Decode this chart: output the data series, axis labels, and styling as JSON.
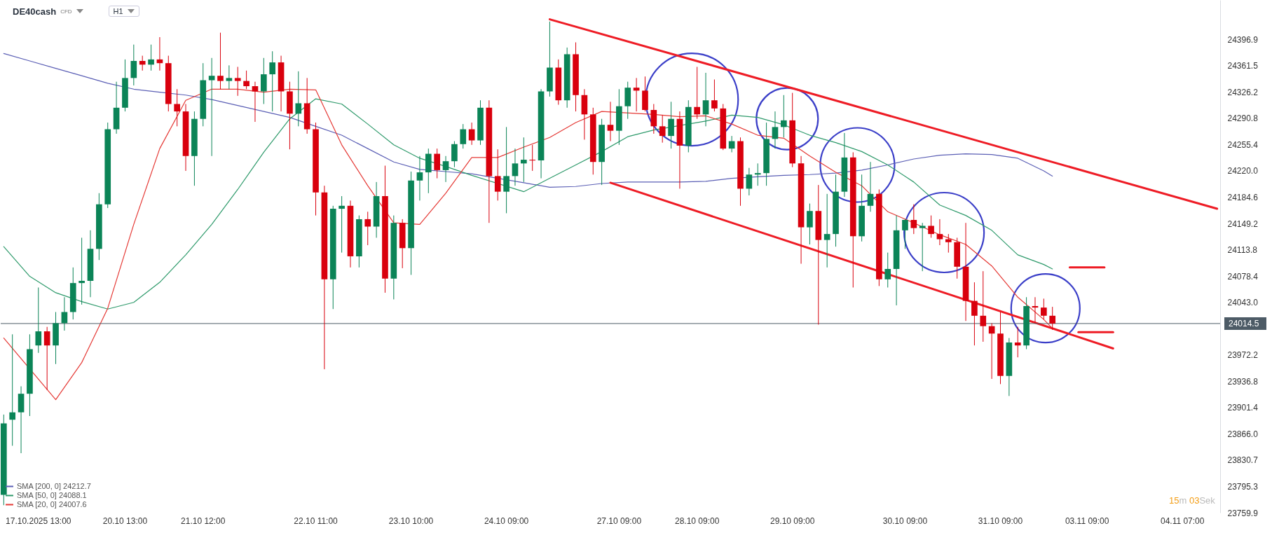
{
  "chart_data": {
    "type": "candlestick",
    "title": "DE40cash",
    "annotations": [
      "CFD",
      "H1",
      "15m 03Sek"
    ],
    "categories": [
      null,
      null,
      null,
      null,
      "17.10.2025 13:00",
      null,
      null,
      null,
      null,
      null,
      null,
      null,
      null,
      null,
      "20.10 13:00",
      null,
      null,
      null,
      null,
      null,
      null,
      null,
      null,
      "21.10 12:00",
      null,
      null,
      null,
      null,
      null,
      null,
      null,
      null,
      null,
      null,
      null,
      null,
      "22.10 11:00",
      null,
      null,
      null,
      null,
      null,
      null,
      null,
      null,
      null,
      null,
      "23.10 10:00",
      null,
      null,
      null,
      null,
      null,
      null,
      null,
      null,
      null,
      null,
      "24.10 09:00",
      null,
      null,
      null,
      null,
      null,
      null,
      null,
      null,
      null,
      null,
      null,
      null,
      "27.10 09:00",
      null,
      null,
      null,
      null,
      null,
      null,
      null,
      null,
      "28.10 09:00",
      null,
      null,
      null,
      null,
      null,
      null,
      null,
      null,
      null,
      null,
      "29.10 09:00",
      null,
      null,
      null,
      null,
      null,
      null,
      null,
      null,
      null,
      null,
      null,
      null,
      "30.10 09:00",
      null,
      null,
      null,
      null,
      null,
      null,
      null,
      null,
      null,
      null,
      "31.10 09:00",
      null,
      null,
      null,
      null,
      null,
      null,
      null,
      null,
      null,
      "03.11 09:00",
      null,
      null,
      null,
      null,
      null,
      null,
      null,
      null,
      null,
      null,
      "04.11 07:00",
      null,
      null,
      null,
      null
    ],
    "ohlc": [
      [
        23784,
        23892,
        23770,
        23880
      ],
      [
        23885,
        24000,
        23850,
        23895
      ],
      [
        23895,
        23930,
        23840,
        23920
      ],
      [
        23920,
        24000,
        23890,
        23980
      ],
      [
        23985,
        24063,
        23975,
        24004
      ],
      [
        24004,
        24010,
        23925,
        23985
      ],
      [
        23985,
        24030,
        23960,
        24015
      ],
      [
        24015,
        24050,
        24005,
        24030
      ],
      [
        24030,
        24090,
        24020,
        24069
      ],
      [
        24069,
        24130,
        24040,
        24072
      ],
      [
        24072,
        24140,
        24050,
        24115
      ],
      [
        24115,
        24190,
        24100,
        24175
      ],
      [
        24175,
        24285,
        24170,
        24276
      ],
      [
        24276,
        24340,
        24270,
        24305
      ],
      [
        24305,
        24370,
        24300,
        24345
      ],
      [
        24345,
        24390,
        24335,
        24368
      ],
      [
        24368,
        24375,
        24355,
        24363
      ],
      [
        24363,
        24390,
        24355,
        24370
      ],
      [
        24370,
        24400,
        24355,
        24365
      ],
      [
        24365,
        24375,
        24300,
        24310
      ],
      [
        24310,
        24330,
        24280,
        24300
      ],
      [
        24300,
        24310,
        24220,
        24240
      ],
      [
        24240,
        24300,
        24200,
        24290
      ],
      [
        24290,
        24365,
        24280,
        24342
      ],
      [
        24342,
        24372,
        24240,
        24348
      ],
      [
        24348,
        24406,
        24330,
        24341
      ],
      [
        24341,
        24362,
        24330,
        24345
      ],
      [
        24345,
        24360,
        24321,
        24341
      ],
      [
        24341,
        24355,
        24330,
        24334
      ],
      [
        24334,
        24340,
        24286,
        24327
      ],
      [
        24327,
        24372,
        24310,
        24350
      ],
      [
        24350,
        24381,
        24300,
        24366
      ],
      [
        24366,
        24375,
        24300,
        24327
      ],
      [
        24327,
        24340,
        24249,
        24297
      ],
      [
        24297,
        24354,
        24280,
        24311
      ],
      [
        24311,
        24345,
        24270,
        24276
      ],
      [
        24276,
        24285,
        24160,
        24191
      ],
      [
        24191,
        24200,
        23953,
        24074
      ],
      [
        24074,
        24173,
        24034,
        24169
      ],
      [
        24169,
        24186,
        24110,
        24173
      ],
      [
        24173,
        24180,
        24090,
        24105
      ],
      [
        24105,
        24160,
        24090,
        24155
      ],
      [
        24155,
        24165,
        24120,
        24145
      ],
      [
        24145,
        24205,
        24130,
        24186
      ],
      [
        24186,
        24227,
        24056,
        24075
      ],
      [
        24075,
        24160,
        24047,
        24150
      ],
      [
        24150,
        24155,
        24089,
        24116
      ],
      [
        24116,
        24219,
        24080,
        24207
      ],
      [
        24207,
        24240,
        24180,
        24218
      ],
      [
        24218,
        24250,
        24190,
        24243
      ],
      [
        24243,
        24250,
        24210,
        24221
      ],
      [
        24221,
        24240,
        24205,
        24233
      ],
      [
        24233,
        24260,
        24225,
        24256
      ],
      [
        24256,
        24283,
        24250,
        24276
      ],
      [
        24276,
        24285,
        24255,
        24261
      ],
      [
        24261,
        24315,
        24255,
        24305
      ],
      [
        24305,
        24315,
        24150,
        24213
      ],
      [
        24213,
        24249,
        24180,
        24192
      ],
      [
        24192,
        24279,
        24163,
        24213
      ],
      [
        24213,
        24250,
        24200,
        24230
      ],
      [
        24230,
        24265,
        24205,
        24235
      ],
      [
        24235,
        24255,
        24220,
        24234
      ],
      [
        24234,
        24330,
        24210,
        24327
      ],
      [
        24327,
        24421,
        24320,
        24359
      ],
      [
        24359,
        24370,
        24309,
        24315
      ],
      [
        24315,
        24386,
        24305,
        24377
      ],
      [
        24377,
        24393,
        24300,
        24322
      ],
      [
        24322,
        24330,
        24262,
        24296
      ],
      [
        24296,
        24305,
        24215,
        24232
      ],
      [
        24232,
        24290,
        24201,
        24282
      ],
      [
        24282,
        24313,
        24260,
        24274
      ],
      [
        24274,
        24330,
        24255,
        24307
      ],
      [
        24307,
        24340,
        24290,
        24332
      ],
      [
        24332,
        24345,
        24300,
        24328
      ],
      [
        24328,
        24347,
        24300,
        24302
      ],
      [
        24302,
        24310,
        24270,
        24280
      ],
      [
        24280,
        24295,
        24258,
        24267
      ],
      [
        24267,
        24313,
        24250,
        24290
      ],
      [
        24290,
        24300,
        24196,
        24254
      ],
      [
        24254,
        24315,
        24245,
        24306
      ],
      [
        24306,
        24360,
        24290,
        24296
      ],
      [
        24296,
        24352,
        24280,
        24315
      ],
      [
        24315,
        24343,
        24300,
        24304
      ],
      [
        24304,
        24310,
        24248,
        24250
      ],
      [
        24250,
        24267,
        24245,
        24260
      ],
      [
        24260,
        24265,
        24173,
        24196
      ],
      [
        24196,
        24224,
        24187,
        24215
      ],
      [
        24215,
        24230,
        24200,
        24217
      ],
      [
        24217,
        24285,
        24200,
        24263
      ],
      [
        24263,
        24300,
        24250,
        24279
      ],
      [
        24279,
        24322,
        24265,
        24288
      ],
      [
        24288,
        24325,
        24225,
        24230
      ],
      [
        24230,
        24240,
        24095,
        24144
      ],
      [
        24144,
        24176,
        24121,
        24166
      ],
      [
        24166,
        24201,
        24013,
        24127
      ],
      [
        24127,
        24189,
        24090,
        24135
      ],
      [
        24135,
        24215,
        24118,
        24192
      ],
      [
        24192,
        24271,
        24185,
        24238
      ],
      [
        24238,
        24245,
        24063,
        24132
      ],
      [
        24132,
        24215,
        24125,
        24173
      ],
      [
        24173,
        24232,
        24165,
        24189
      ],
      [
        24189,
        24195,
        24065,
        24074
      ],
      [
        24074,
        24110,
        24063,
        24088
      ],
      [
        24088,
        24160,
        24039,
        24140
      ],
      [
        24140,
        24155,
        24115,
        24154
      ],
      [
        24154,
        24175,
        24135,
        24143
      ],
      [
        24143,
        24150,
        24085,
        24146
      ],
      [
        24146,
        24160,
        24130,
        24135
      ],
      [
        24135,
        24155,
        24120,
        24128
      ],
      [
        24128,
        24135,
        24110,
        24124
      ],
      [
        24124,
        24130,
        24075,
        24091
      ],
      [
        24091,
        24150,
        24018,
        24045
      ],
      [
        24045,
        24070,
        23985,
        24025
      ],
      [
        24025,
        24085,
        23990,
        24011
      ],
      [
        24011,
        24015,
        23940,
        24001
      ],
      [
        24001,
        24030,
        23933,
        23944
      ],
      [
        23944,
        23995,
        23917,
        23989
      ],
      [
        23989,
        24010,
        23969,
        23985
      ],
      [
        23985,
        24050,
        23980,
        24038
      ],
      [
        24038,
        24050,
        24015,
        24036
      ],
      [
        24036,
        24048,
        24020,
        24025
      ],
      [
        24025,
        24037,
        24006,
        24014.5
      ],
      null,
      null,
      null,
      null,
      null,
      null,
      null,
      null,
      null,
      null,
      null,
      null,
      null,
      null,
      null,
      null,
      null,
      null,
      null
    ],
    "series": [
      {
        "name": "SMA [200, 0] 24212.7",
        "type": "line",
        "color": "#5b5fb5",
        "values": [
          24378,
          null,
          null,
          24368,
          null,
          null,
          24358,
          null,
          null,
          24348,
          null,
          null,
          24338,
          null,
          null,
          24330,
          null,
          null,
          24326,
          null,
          null,
          24322,
          null,
          null,
          24316,
          null,
          null,
          24308,
          null,
          null,
          24300,
          null,
          null,
          24292,
          null,
          null,
          24280,
          null,
          null,
          24268,
          null,
          null,
          24250,
          null,
          null,
          24232,
          null,
          null,
          24222,
          null,
          null,
          24219,
          null,
          null,
          24216,
          null,
          null,
          null,
          null,
          null,
          24204,
          null,
          null,
          24198,
          null,
          null,
          24199,
          null,
          null,
          24203,
          null,
          null,
          24205,
          null,
          null,
          24205,
          null,
          null,
          24205,
          null,
          null,
          24206,
          null,
          null,
          24210,
          null,
          null,
          24212,
          null,
          null,
          24214,
          null,
          null,
          24215,
          null,
          null,
          24217,
          null,
          null,
          24221,
          null,
          null,
          24228,
          null,
          null,
          24236,
          null,
          null,
          24241,
          null,
          null,
          24243,
          null,
          null,
          24242,
          null,
          null,
          24237,
          null,
          null,
          24220,
          24213,
          null,
          null,
          null,
          null,
          null,
          null,
          null,
          null,
          null,
          null,
          null,
          null,
          null,
          null,
          null,
          null,
          null,
          null,
          null
        ]
      },
      {
        "name": "SMA [50, 0] 24088.1",
        "type": "line",
        "color": "#2e9a6b",
        "values": [
          24118,
          null,
          null,
          24078,
          null,
          null,
          24056,
          null,
          null,
          24044,
          null,
          null,
          24034,
          null,
          null,
          24043,
          null,
          null,
          24070,
          null,
          null,
          24107,
          null,
          null,
          24148,
          null,
          null,
          24195,
          null,
          null,
          24245,
          null,
          null,
          24290,
          null,
          null,
          24317,
          null,
          null,
          24310,
          null,
          null,
          24283,
          null,
          null,
          24255,
          null,
          null,
          24237,
          null,
          null,
          24226,
          null,
          null,
          24214,
          null,
          null,
          null,
          null,
          null,
          24192,
          null,
          null,
          24210,
          null,
          null,
          24228,
          null,
          null,
          24246,
          null,
          null,
          24266,
          null,
          null,
          24275,
          null,
          null,
          null,
          null,
          null,
          24287,
          null,
          null,
          24295,
          null,
          null,
          24292,
          null,
          null,
          24282,
          null,
          null,
          24268,
          null,
          null,
          24258,
          null,
          null,
          24246,
          null,
          null,
          24228,
          null,
          null,
          24205,
          null,
          null,
          24174,
          null,
          null,
          24160,
          null,
          null,
          24140,
          null,
          null,
          24107,
          null,
          null,
          24094,
          24088,
          null,
          null,
          null,
          null,
          null,
          null,
          null,
          null,
          null,
          null,
          null,
          null,
          null,
          null,
          null,
          null,
          null,
          null,
          null
        ]
      },
      {
        "name": "SMA [20, 0] 24007.6",
        "type": "line",
        "color": "#e53935",
        "values": [
          23995,
          null,
          null,
          null,
          null,
          null,
          23912,
          null,
          null,
          23962,
          null,
          null,
          24035,
          null,
          null,
          24148,
          null,
          null,
          24250,
          null,
          null,
          24315,
          null,
          null,
          24330,
          null,
          null,
          24330,
          null,
          null,
          24326,
          null,
          null,
          24330,
          null,
          null,
          24329,
          null,
          null,
          24255,
          null,
          null,
          24200,
          null,
          null,
          24150,
          null,
          null,
          24148,
          null,
          null,
          24190,
          null,
          null,
          24238,
          null,
          null,
          24238,
          null,
          null,
          24252,
          null,
          null,
          24265,
          null,
          null,
          24285,
          null,
          null,
          24300,
          null,
          null,
          null,
          null,
          null,
          24296,
          null,
          null,
          24293,
          null,
          null,
          24294,
          null,
          null,
          24283,
          null,
          null,
          24268,
          null,
          null,
          24264,
          null,
          null,
          24240,
          null,
          null,
          24218,
          null,
          null,
          24200,
          null,
          null,
          24165,
          null,
          null,
          24150,
          null,
          null,
          24134,
          null,
          null,
          24121,
          null,
          null,
          24092,
          null,
          null,
          24050,
          null,
          null,
          24020,
          24008,
          null,
          null,
          null,
          null,
          null,
          null,
          null,
          null,
          null,
          null,
          null,
          null,
          null,
          null,
          null,
          null,
          null,
          null,
          null
        ]
      },
      {
        "type": "line",
        "color": "#ee1c25",
        "values": [
          null,
          null,
          null,
          null,
          null,
          null,
          null,
          null,
          null,
          null,
          null,
          null,
          null,
          null,
          null,
          null,
          null,
          null,
          null,
          null,
          null,
          null,
          null,
          null,
          null,
          null,
          null,
          null,
          null,
          null,
          null,
          null,
          null,
          null,
          null,
          null,
          null,
          null,
          null,
          null,
          null,
          null,
          null,
          null,
          null,
          null,
          null,
          null,
          null,
          null,
          null,
          null,
          null,
          null,
          null,
          null,
          null,
          null,
          null,
          null,
          null,
          null,
          null,
          24424,
          null,
          null,
          null,
          null,
          null,
          null,
          null,
          null,
          null,
          null,
          null,
          null,
          null,
          null,
          null,
          null,
          null,
          null,
          null,
          null,
          null,
          null,
          null,
          null,
          null,
          null,
          null,
          null,
          null,
          null,
          null,
          null,
          null,
          null,
          null,
          null,
          null,
          null,
          null,
          null,
          null,
          null,
          null,
          null,
          null,
          null,
          null,
          null,
          null,
          null,
          null,
          null,
          null,
          null,
          null,
          null,
          null,
          null,
          null,
          null,
          null,
          null,
          null,
          null,
          null,
          null,
          null,
          null,
          null,
          null,
          null,
          null,
          null,
          null,
          null,
          null,
          24169
        ]
      },
      {
        "type": "line",
        "color": "#ee1c25",
        "values": [
          null,
          null,
          null,
          null,
          null,
          null,
          null,
          null,
          null,
          null,
          null,
          null,
          null,
          null,
          null,
          null,
          null,
          null,
          null,
          null,
          null,
          null,
          null,
          null,
          null,
          null,
          null,
          null,
          null,
          null,
          null,
          null,
          null,
          null,
          null,
          null,
          null,
          null,
          null,
          null,
          null,
          null,
          null,
          null,
          null,
          null,
          null,
          null,
          null,
          null,
          null,
          null,
          null,
          null,
          null,
          null,
          null,
          null,
          null,
          null,
          null,
          null,
          null,
          null,
          null,
          null,
          null,
          null,
          null,
          null,
          24204,
          null,
          null,
          null,
          null,
          null,
          null,
          null,
          null,
          null,
          null,
          null,
          null,
          null,
          null,
          null,
          null,
          null,
          null,
          null,
          null,
          null,
          null,
          null,
          null,
          null,
          null,
          null,
          null,
          null,
          null,
          null,
          null,
          null,
          null,
          null,
          null,
          null,
          null,
          null,
          null,
          null,
          null,
          null,
          null,
          null,
          null,
          null,
          null,
          null,
          null,
          null,
          null,
          null,
          null,
          null,
          null,
          null,
          23981,
          null,
          null,
          null,
          null,
          null,
          null,
          null,
          null,
          null,
          null,
          null,
          null
        ]
      },
      {
        "type": "line",
        "color": "#ee1c25",
        "values": [
          null,
          null,
          null,
          null,
          null,
          null,
          null,
          null,
          null,
          null,
          null,
          null,
          null,
          null,
          null,
          null,
          null,
          null,
          null,
          null,
          null,
          null,
          null,
          null,
          null,
          null,
          null,
          null,
          null,
          null,
          null,
          null,
          null,
          null,
          null,
          null,
          null,
          null,
          null,
          null,
          null,
          null,
          null,
          null,
          null,
          null,
          null,
          null,
          null,
          null,
          null,
          null,
          null,
          null,
          null,
          null,
          null,
          null,
          null,
          null,
          null,
          null,
          null,
          null,
          null,
          null,
          null,
          null,
          null,
          null,
          null,
          null,
          null,
          null,
          null,
          null,
          null,
          null,
          null,
          null,
          null,
          null,
          null,
          null,
          null,
          null,
          null,
          null,
          null,
          null,
          null,
          null,
          null,
          null,
          null,
          null,
          null,
          null,
          null,
          null,
          null,
          null,
          null,
          null,
          null,
          null,
          null,
          null,
          null,
          null,
          null,
          null,
          null,
          null,
          null,
          null,
          null,
          null,
          null,
          null,
          null,
          null,
          null,
          24090,
          null,
          null,
          null,
          24090,
          null,
          null,
          null,
          null,
          null,
          null,
          null,
          null,
          null,
          null,
          null,
          null,
          null
        ]
      },
      {
        "type": "line",
        "color": "#ee1c25",
        "values": [
          null,
          null,
          null,
          null,
          null,
          null,
          null,
          null,
          null,
          null,
          null,
          null,
          null,
          null,
          null,
          null,
          null,
          null,
          null,
          null,
          null,
          null,
          null,
          null,
          null,
          null,
          null,
          null,
          null,
          null,
          null,
          null,
          null,
          null,
          null,
          null,
          null,
          null,
          null,
          null,
          null,
          null,
          null,
          null,
          null,
          null,
          null,
          null,
          null,
          null,
          null,
          null,
          null,
          null,
          null,
          null,
          null,
          null,
          null,
          null,
          null,
          null,
          null,
          null,
          null,
          null,
          null,
          null,
          null,
          null,
          null,
          null,
          null,
          null,
          null,
          null,
          null,
          null,
          null,
          null,
          null,
          null,
          null,
          null,
          null,
          null,
          null,
          null,
          null,
          null,
          null,
          null,
          null,
          null,
          null,
          null,
          null,
          null,
          null,
          null,
          null,
          null,
          null,
          null,
          null,
          null,
          null,
          null,
          null,
          null,
          null,
          null,
          null,
          null,
          null,
          null,
          null,
          null,
          null,
          null,
          null,
          null,
          null,
          null,
          24003,
          null,
          null,
          null,
          24003,
          null,
          null,
          null,
          null,
          null,
          null,
          null,
          null,
          null,
          null,
          null,
          null
        ]
      }
    ],
    "ylim": [
      23759.9,
      24450
    ],
    "yticks": [
      23759.9,
      23795.3,
      23830.7,
      {
        "value": 23866,
        "label": "23866.0"
      },
      23901.4,
      23936.8,
      23972.2,
      {
        "value": 24043,
        "label": "24043.0"
      },
      24078.4,
      24113.8,
      24149.2,
      24184.6,
      {
        "value": 24220,
        "label": "24220.0"
      },
      24255.4,
      24290.8,
      24326.2,
      24361.5,
      24396.9
    ],
    "ref_lines": [
      {
        "axis": "y",
        "value": 24014.5,
        "label": "24014.5",
        "color": "#4d5b66"
      }
    ],
    "legend": "bottom left"
  }
}
